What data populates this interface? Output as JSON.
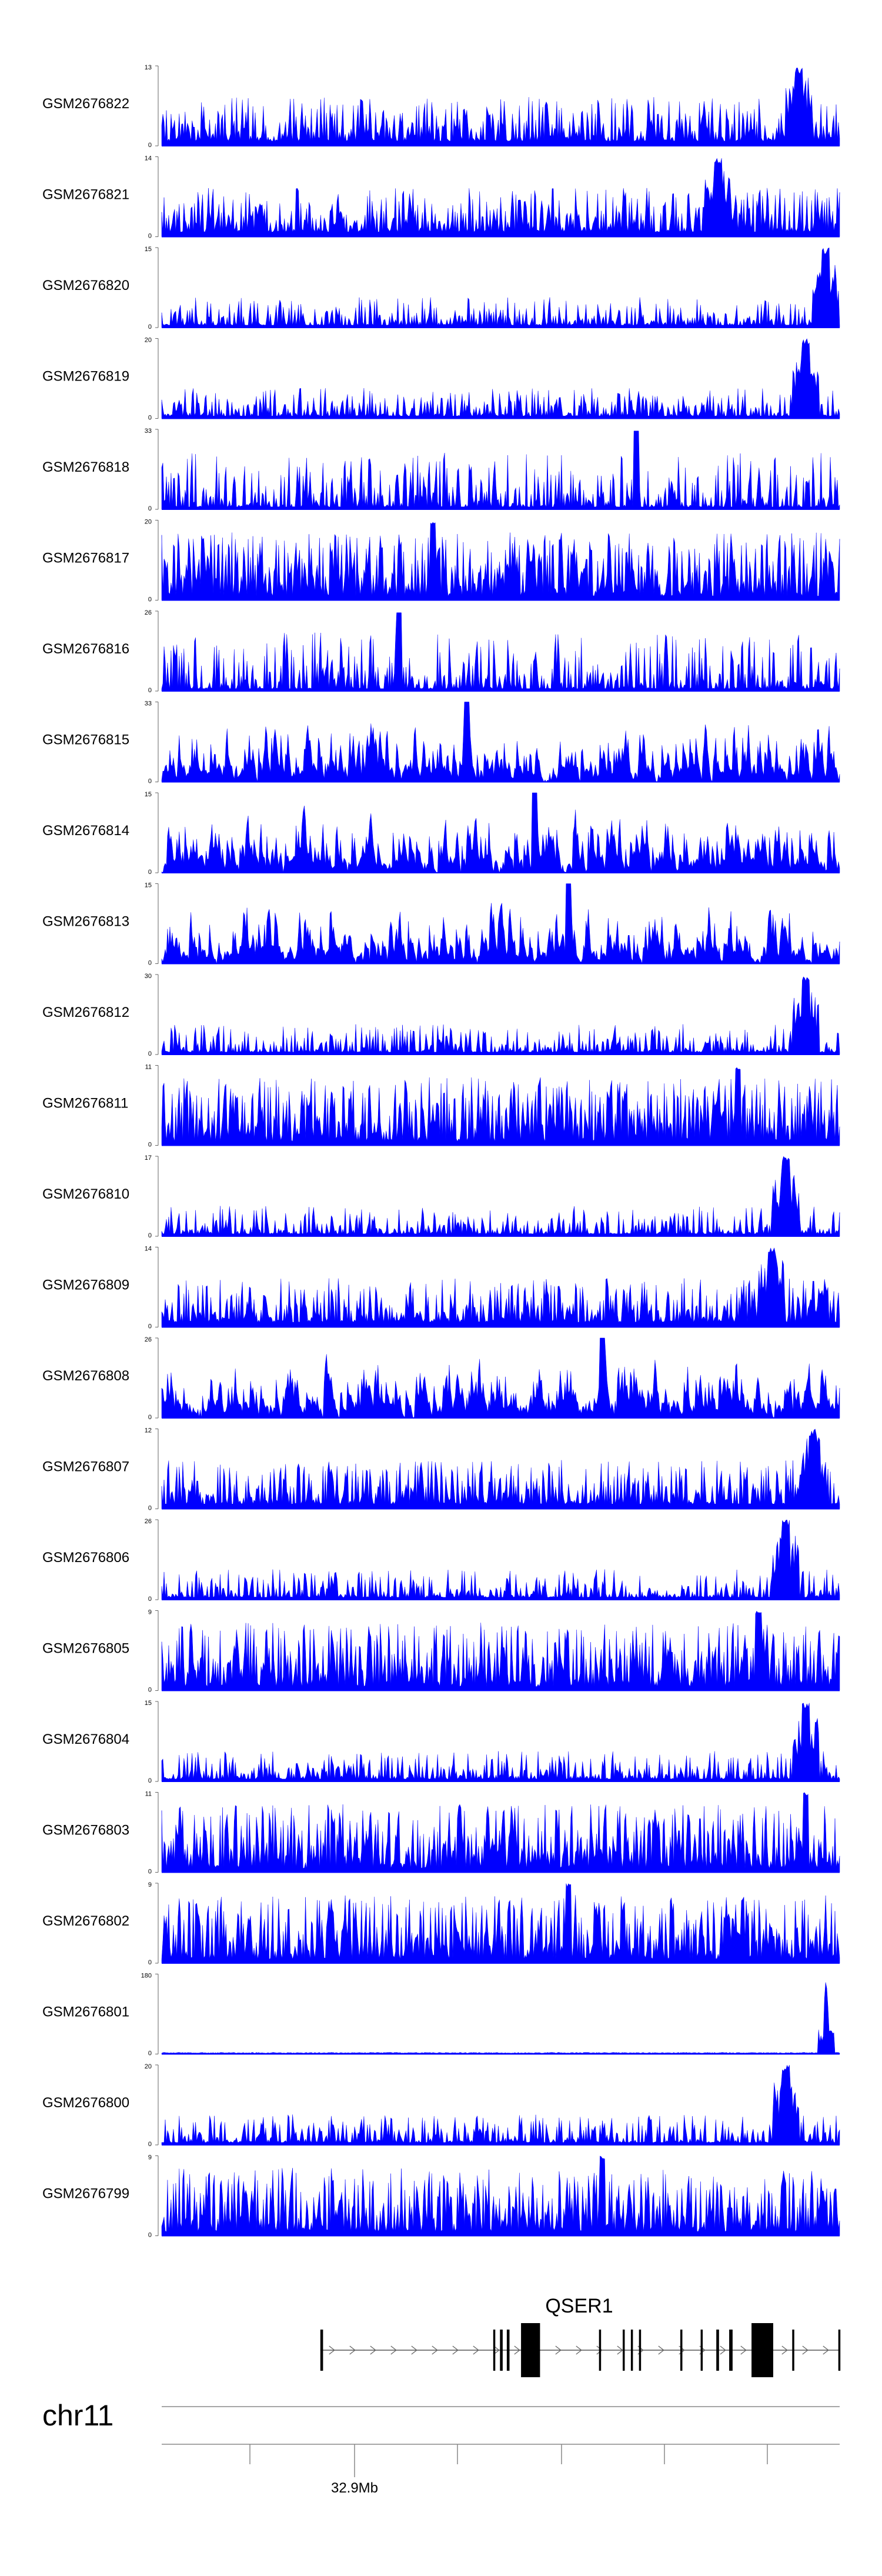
{
  "chart_data": {
    "type": "area",
    "title": "",
    "chromosome": "chr11",
    "axis": {
      "major_tick_label": "32.9Mb",
      "range_mb": [
        32.87,
        32.94
      ]
    },
    "color": "#0000ff",
    "baseline_label": "0",
    "tracks": [
      {
        "name": "GSM2676822",
        "ymax": 13,
        "summit": 0.94,
        "style": "moderate"
      },
      {
        "name": "GSM2676821",
        "ymax": 14,
        "summit": 0.82,
        "style": "moderate"
      },
      {
        "name": "GSM2676820",
        "ymax": 15,
        "summit": 0.98,
        "style": "lowpeak"
      },
      {
        "name": "GSM2676819",
        "ymax": 20,
        "summit": 0.95,
        "style": "lowpeak"
      },
      {
        "name": "GSM2676818",
        "ymax": 33,
        "summit": 0.7,
        "style": "sparse"
      },
      {
        "name": "GSM2676817",
        "ymax": 20,
        "summit": 0.4,
        "style": "dense"
      },
      {
        "name": "GSM2676816",
        "ymax": 26,
        "summit": 0.35,
        "style": "sparse"
      },
      {
        "name": "GSM2676815",
        "ymax": 33,
        "summit": 0.45,
        "style": "tri"
      },
      {
        "name": "GSM2676814",
        "ymax": 15,
        "summit": 0.55,
        "style": "tri"
      },
      {
        "name": "GSM2676813",
        "ymax": 15,
        "summit": 0.6,
        "style": "tri"
      },
      {
        "name": "GSM2676812",
        "ymax": 30,
        "summit": 0.95,
        "style": "lowpeak"
      },
      {
        "name": "GSM2676811",
        "ymax": 11,
        "summit": 0.85,
        "style": "dense"
      },
      {
        "name": "GSM2676810",
        "ymax": 17,
        "summit": 0.92,
        "style": "lowpeak"
      },
      {
        "name": "GSM2676809",
        "ymax": 14,
        "summit": 0.9,
        "style": "moderate"
      },
      {
        "name": "GSM2676808",
        "ymax": 26,
        "summit": 0.65,
        "style": "tri"
      },
      {
        "name": "GSM2676807",
        "ymax": 12,
        "summit": 0.96,
        "style": "moderate"
      },
      {
        "name": "GSM2676806",
        "ymax": 26,
        "summit": 0.92,
        "style": "lowpeak"
      },
      {
        "name": "GSM2676805",
        "ymax": 9,
        "summit": 0.88,
        "style": "dense"
      },
      {
        "name": "GSM2676804",
        "ymax": 15,
        "summit": 0.95,
        "style": "lowpeak"
      },
      {
        "name": "GSM2676803",
        "ymax": 11,
        "summit": 0.95,
        "style": "dense"
      },
      {
        "name": "GSM2676802",
        "ymax": 9,
        "summit": 0.6,
        "style": "dense"
      },
      {
        "name": "GSM2676801",
        "ymax": 180,
        "summit": 0.98,
        "style": "single"
      },
      {
        "name": "GSM2676800",
        "ymax": 20,
        "summit": 0.92,
        "style": "lowpeak"
      },
      {
        "name": "GSM2676799",
        "ymax": 9,
        "summit": 0.65,
        "style": "dense"
      }
    ],
    "gene": {
      "name": "QSER1",
      "strand": "+",
      "start_frac": 0.234,
      "end_frac": 1.0,
      "exons": [
        {
          "at": 0.234,
          "w": 0.004
        },
        {
          "at": 0.489,
          "w": 0.003
        },
        {
          "at": 0.499,
          "w": 0.004
        },
        {
          "at": 0.509,
          "w": 0.004
        },
        {
          "at": 0.53,
          "w": 0.028
        },
        {
          "at": 0.645,
          "w": 0.003
        },
        {
          "at": 0.68,
          "w": 0.003
        },
        {
          "at": 0.692,
          "w": 0.003
        },
        {
          "at": 0.704,
          "w": 0.003
        },
        {
          "at": 0.765,
          "w": 0.003
        },
        {
          "at": 0.795,
          "w": 0.003
        },
        {
          "at": 0.818,
          "w": 0.004
        },
        {
          "at": 0.837,
          "w": 0.005
        },
        {
          "at": 0.87,
          "w": 0.032
        },
        {
          "at": 0.93,
          "w": 0.003
        },
        {
          "at": 0.998,
          "w": 0.003
        }
      ]
    }
  }
}
